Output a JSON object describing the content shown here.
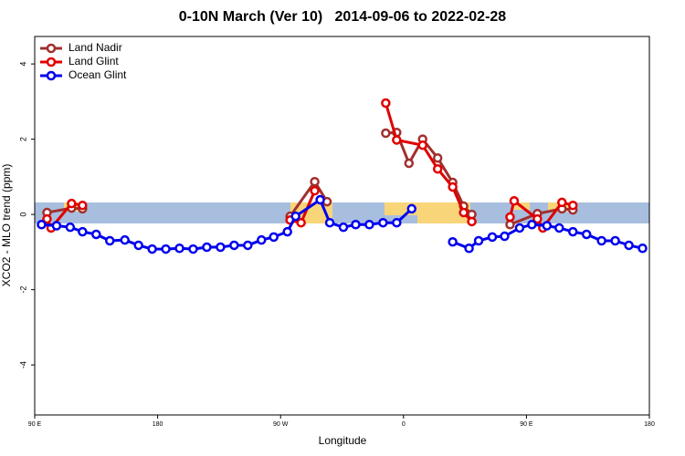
{
  "chart_data": {
    "type": "line",
    "title": "0-10N March (Ver 10)   2014-09-06 to 2022-02-28",
    "x_label": "Longitude",
    "y_label": "XCO2 - MLO trend (ppm)",
    "xlim": [
      90,
      540
    ],
    "ylim": [
      -5.33,
      4.73
    ],
    "xticks": [
      {
        "value": 90,
        "label": "90 E"
      },
      180,
      {
        "value": 270,
        "label": "90 W"
      },
      {
        "value": 360,
        "label": "0"
      },
      {
        "value": 450,
        "label": "90 E"
      },
      {
        "value": 540,
        "label": "180"
      }
    ],
    "yticks": [
      -4,
      -2,
      0,
      2,
      4
    ],
    "legend": "top-left",
    "series": [
      {
        "name": "Land Nadir",
        "color": "#a0302e",
        "x": [
          99,
          117,
          125,
          130,
          277,
          295,
          304,
          320,
          347,
          355,
          364,
          374,
          385,
          396,
          404,
          410,
          420,
          438,
          458,
          476,
          484
        ],
        "values": [
          0.05,
          0.17,
          0.15,
          null,
          -0.05,
          0.87,
          0.34,
          null,
          2.16,
          2.18,
          1.36,
          2.0,
          1.5,
          0.85,
          0.22,
          0.0,
          null,
          -0.27,
          0.02,
          0.15,
          0.12
        ]
      },
      {
        "name": "Land Glint",
        "color": "#e00000",
        "x": [
          99,
          102,
          117,
          125,
          130,
          277,
          285,
          295,
          320,
          347,
          355,
          374,
          385,
          396,
          404,
          410,
          420,
          438,
          441,
          458,
          462,
          476,
          484
        ],
        "values": [
          -0.12,
          -0.36,
          0.29,
          0.24,
          null,
          -0.15,
          -0.22,
          0.63,
          null,
          2.96,
          1.98,
          1.84,
          1.21,
          0.73,
          0.05,
          -0.19,
          null,
          -0.07,
          0.36,
          -0.12,
          -0.36,
          0.32,
          0.24
        ]
      },
      {
        "name": "Ocean Glint",
        "color": "#0000ee",
        "x": [
          95,
          106,
          116,
          125,
          135,
          145,
          156,
          166,
          176,
          186,
          196,
          206,
          216,
          226,
          236,
          246,
          256,
          265,
          275,
          281,
          299,
          306,
          316,
          325,
          335,
          345,
          355,
          366,
          380,
          396,
          408,
          415,
          425,
          434,
          445,
          454,
          465,
          474,
          484,
          494,
          505,
          515,
          525,
          535
        ],
        "values": [
          -0.27,
          -0.3,
          -0.34,
          -0.46,
          -0.53,
          -0.7,
          -0.68,
          -0.82,
          -0.92,
          -0.92,
          -0.9,
          -0.92,
          -0.87,
          -0.87,
          -0.82,
          -0.82,
          -0.68,
          -0.6,
          -0.46,
          -0.05,
          0.39,
          -0.22,
          -0.34,
          -0.27,
          -0.27,
          -0.22,
          -0.22,
          0.15,
          null,
          -0.73,
          -0.9,
          -0.7,
          -0.6,
          -0.58,
          -0.36,
          -0.27,
          -0.3,
          -0.36,
          -0.46,
          -0.53,
          -0.7,
          -0.7,
          -0.82,
          -0.9
        ]
      }
    ]
  }
}
